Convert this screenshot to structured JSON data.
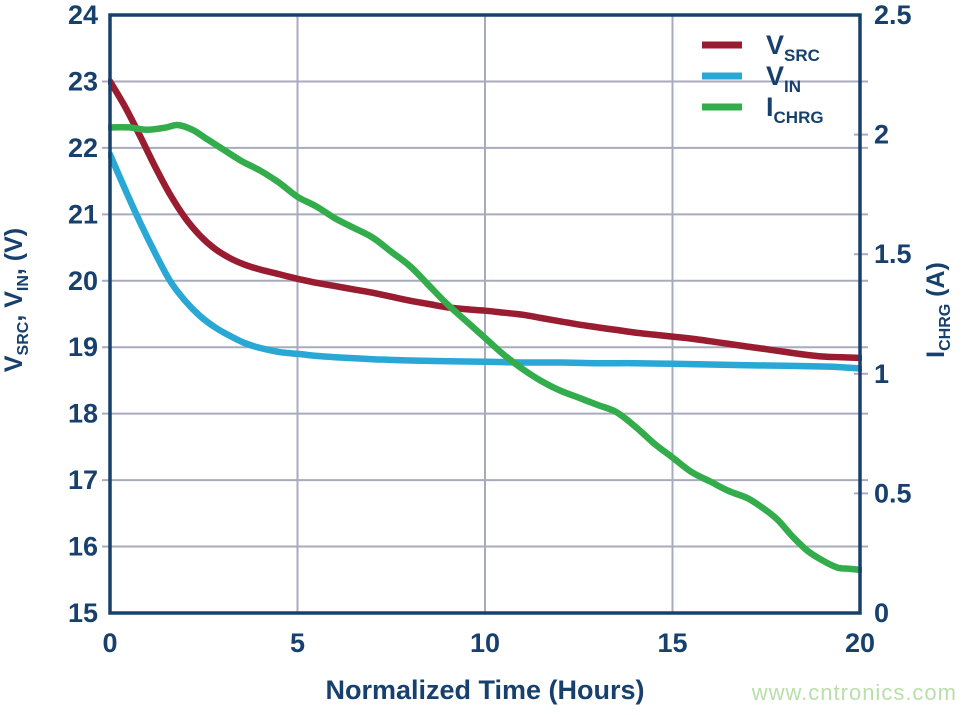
{
  "watermark": "www.cntronics.com",
  "colors": {
    "axis": "#17406d",
    "text": "#17406d",
    "grid": "#a8abbd",
    "background": "#ffffff",
    "v_src": "#9a1c30",
    "v_in": "#29a8d6",
    "i_chrg": "#33ad4c",
    "watermark": "#b9dfa9"
  },
  "chart_data": {
    "type": "line",
    "title": "",
    "xlabel": "Normalized Time (Hours)",
    "x_range": [
      0,
      20
    ],
    "x_ticks": [
      {
        "v": 0,
        "label": "0"
      },
      {
        "v": 5,
        "label": "5"
      },
      {
        "v": 10,
        "label": "10"
      },
      {
        "v": 15,
        "label": "15"
      },
      {
        "v": 20,
        "label": "20"
      }
    ],
    "x_gridlines": [
      5,
      10,
      15
    ],
    "left_axis": {
      "title_parts": [
        [
          "V",
          false
        ],
        [
          "SRC",
          true
        ],
        [
          ", V",
          false
        ],
        [
          "IN",
          true
        ],
        [
          ", (V)",
          false
        ]
      ],
      "range": [
        15,
        24
      ],
      "ticks": [
        {
          "v": 24,
          "label": "24"
        },
        {
          "v": 23,
          "label": "23"
        },
        {
          "v": 22,
          "label": "22"
        },
        {
          "v": 21,
          "label": "21"
        },
        {
          "v": 20,
          "label": "20"
        },
        {
          "v": 19,
          "label": "19"
        },
        {
          "v": 18,
          "label": "18"
        },
        {
          "v": 17,
          "label": "17"
        },
        {
          "v": 16,
          "label": "16"
        },
        {
          "v": 15,
          "label": "15"
        }
      ],
      "gridlines": [
        16,
        17,
        18,
        19,
        20,
        21,
        22,
        23
      ]
    },
    "right_axis": {
      "title_parts": [
        [
          "I",
          false
        ],
        [
          "CHRG",
          true
        ],
        [
          " (A)",
          false
        ]
      ],
      "range": [
        0,
        2.5
      ],
      "ticks": [
        {
          "v": 2.5,
          "label": "2.5"
        },
        {
          "v": 2,
          "label": "2"
        },
        {
          "v": 1.5,
          "label": "1.5"
        },
        {
          "v": 1,
          "label": "1"
        },
        {
          "v": 0.5,
          "label": "0.5"
        },
        {
          "v": 0,
          "label": "0"
        }
      ],
      "tick_stubs": [
        0.5,
        1,
        1.5,
        2
      ]
    },
    "grid": true,
    "legend_position": "top-right-inside",
    "series": [
      {
        "id": "v-src",
        "name": "V_SRC",
        "label_parts": [
          [
            "V",
            false
          ],
          [
            "SRC",
            true
          ]
        ],
        "axis": "left",
        "color_key": "v_src",
        "points": [
          [
            0,
            23.0
          ],
          [
            0.4,
            22.62
          ],
          [
            0.8,
            22.18
          ],
          [
            1.2,
            21.72
          ],
          [
            1.6,
            21.3
          ],
          [
            2,
            20.95
          ],
          [
            2.4,
            20.68
          ],
          [
            2.8,
            20.48
          ],
          [
            3.2,
            20.34
          ],
          [
            3.6,
            20.24
          ],
          [
            4,
            20.17
          ],
          [
            4.5,
            20.1
          ],
          [
            5,
            20.03
          ],
          [
            5.5,
            19.97
          ],
          [
            6,
            19.92
          ],
          [
            6.5,
            19.87
          ],
          [
            7,
            19.82
          ],
          [
            7.5,
            19.76
          ],
          [
            8,
            19.7
          ],
          [
            8.5,
            19.65
          ],
          [
            9,
            19.6
          ],
          [
            9.5,
            19.57
          ],
          [
            10,
            19.55
          ],
          [
            10.5,
            19.52
          ],
          [
            11,
            19.49
          ],
          [
            11.5,
            19.44
          ],
          [
            12,
            19.39
          ],
          [
            12.5,
            19.34
          ],
          [
            13,
            19.3
          ],
          [
            13.5,
            19.26
          ],
          [
            14,
            19.22
          ],
          [
            14.5,
            19.19
          ],
          [
            15,
            19.16
          ],
          [
            15.5,
            19.13
          ],
          [
            16,
            19.09
          ],
          [
            16.5,
            19.05
          ],
          [
            17,
            19.01
          ],
          [
            17.5,
            18.97
          ],
          [
            18,
            18.93
          ],
          [
            18.5,
            18.89
          ],
          [
            19,
            18.86
          ],
          [
            19.5,
            18.85
          ],
          [
            20,
            18.84
          ]
        ]
      },
      {
        "id": "v-in",
        "name": "V_IN",
        "label_parts": [
          [
            "V",
            false
          ],
          [
            "IN",
            true
          ]
        ],
        "axis": "left",
        "color_key": "v_in",
        "points": [
          [
            0,
            21.9
          ],
          [
            0.4,
            21.38
          ],
          [
            0.8,
            20.88
          ],
          [
            1.2,
            20.42
          ],
          [
            1.6,
            20.0
          ],
          [
            2,
            19.7
          ],
          [
            2.4,
            19.47
          ],
          [
            2.8,
            19.3
          ],
          [
            3.2,
            19.17
          ],
          [
            3.6,
            19.06
          ],
          [
            4,
            18.99
          ],
          [
            4.5,
            18.93
          ],
          [
            5,
            18.9
          ],
          [
            5.5,
            18.87
          ],
          [
            6,
            18.85
          ],
          [
            7,
            18.82
          ],
          [
            8,
            18.8
          ],
          [
            9,
            18.79
          ],
          [
            10,
            18.78
          ],
          [
            11,
            18.77
          ],
          [
            12,
            18.77
          ],
          [
            13,
            18.76
          ],
          [
            14,
            18.76
          ],
          [
            15,
            18.75
          ],
          [
            16,
            18.74
          ],
          [
            17,
            18.73
          ],
          [
            18,
            18.72
          ],
          [
            19,
            18.71
          ],
          [
            19.5,
            18.7
          ],
          [
            20,
            18.68
          ]
        ]
      },
      {
        "id": "i-chrg",
        "name": "I_CHRG",
        "label_parts": [
          [
            "I",
            false
          ],
          [
            "CHRG",
            true
          ]
        ],
        "axis": "right",
        "color_key": "i_chrg",
        "points": [
          [
            0,
            2.03
          ],
          [
            0.5,
            2.03
          ],
          [
            1,
            2.02
          ],
          [
            1.5,
            2.03
          ],
          [
            1.8,
            2.04
          ],
          [
            2.2,
            2.02
          ],
          [
            2.6,
            1.98
          ],
          [
            3,
            1.94
          ],
          [
            3.5,
            1.89
          ],
          [
            4,
            1.85
          ],
          [
            4.5,
            1.8
          ],
          [
            5,
            1.74
          ],
          [
            5.5,
            1.7
          ],
          [
            6,
            1.65
          ],
          [
            6.5,
            1.61
          ],
          [
            7,
            1.57
          ],
          [
            7.5,
            1.51
          ],
          [
            8,
            1.45
          ],
          [
            8.5,
            1.37
          ],
          [
            9,
            1.29
          ],
          [
            9.5,
            1.22
          ],
          [
            10,
            1.15
          ],
          [
            10.5,
            1.08
          ],
          [
            11,
            1.02
          ],
          [
            11.5,
            0.97
          ],
          [
            12,
            0.93
          ],
          [
            12.5,
            0.9
          ],
          [
            13,
            0.87
          ],
          [
            13.5,
            0.84
          ],
          [
            14,
            0.78
          ],
          [
            14.5,
            0.71
          ],
          [
            15,
            0.65
          ],
          [
            15.5,
            0.59
          ],
          [
            16,
            0.55
          ],
          [
            16.5,
            0.51
          ],
          [
            17,
            0.48
          ],
          [
            17.4,
            0.44
          ],
          [
            17.8,
            0.39
          ],
          [
            18.2,
            0.32
          ],
          [
            18.6,
            0.26
          ],
          [
            19,
            0.22
          ],
          [
            19.4,
            0.19
          ],
          [
            19.7,
            0.185
          ],
          [
            20,
            0.18
          ]
        ]
      }
    ]
  },
  "layout_labels": {
    "legend": [
      "V_SRC",
      "V_IN",
      "I_CHRG"
    ]
  }
}
